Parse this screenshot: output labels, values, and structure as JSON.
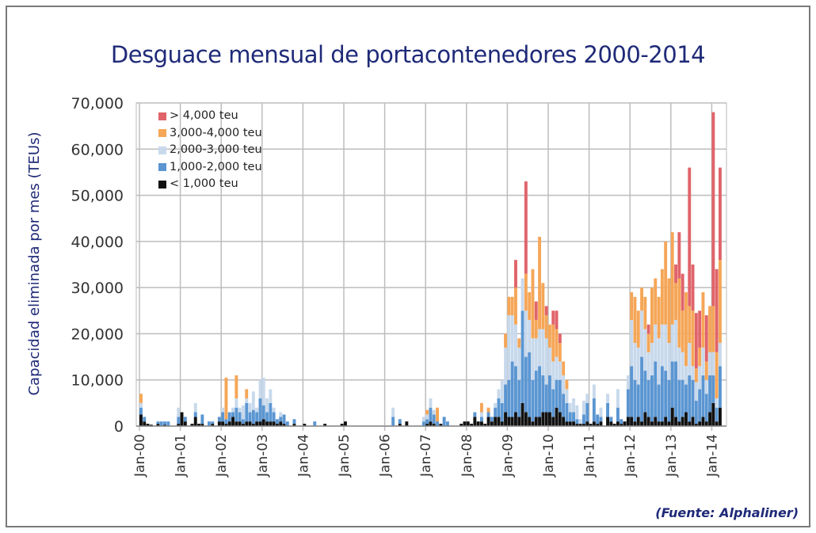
{
  "title": "Desguace mensual de portacontenedores 2000-2014",
  "source": "(Fuente: Alphaliner)",
  "chart_data": {
    "type": "bar",
    "stacked": true,
    "title": "Desguace mensual de portacontenedores 2000-2014",
    "xlabel": "",
    "ylabel": "Capacidad eliminada por mes (TEUs)",
    "ylim": [
      0,
      70000
    ],
    "yticks": [
      "0",
      "10,000",
      "20,000",
      "30,000",
      "40,000",
      "50,000",
      "60,000",
      "70,000"
    ],
    "xticks": [
      "Jan-00",
      "Jan-01",
      "Jan-02",
      "Jan-03",
      "Jan-04",
      "Jan-05",
      "Jan-06",
      "Jan-07",
      "Jan-08",
      "Jan-09",
      "Jan-10",
      "Jan-11",
      "Jan-12",
      "Jan-13",
      "Jan-14"
    ],
    "x_start": "Jan-00",
    "months": 171,
    "value_unit": "thousand TEU",
    "grid": true,
    "legend_position": "top-left",
    "series": [
      {
        "name": "< 1,000 teu",
        "color": "#111111",
        "values": [
          2.5,
          1,
          0.5,
          0.3,
          0,
          0.5,
          0,
          0.3,
          0,
          0,
          0,
          0.5,
          3,
          1,
          0,
          0.5,
          2,
          0.5,
          0.5,
          0,
          0,
          0.5,
          0,
          1,
          1,
          0.5,
          1,
          2,
          1,
          1,
          0.5,
          1,
          1,
          0.5,
          1,
          1,
          1.5,
          1,
          1,
          1,
          0.5,
          1,
          0.5,
          0,
          0,
          0.5,
          0,
          0,
          0.5,
          0,
          0,
          0,
          0,
          0,
          0.5,
          0,
          0,
          0,
          0,
          0.5,
          1,
          0,
          0,
          0,
          0,
          0,
          0,
          0,
          0,
          0,
          0,
          0,
          0,
          0,
          0,
          0,
          0.5,
          0,
          1,
          0,
          0,
          0,
          0,
          0,
          0.5,
          1,
          0.5,
          0,
          0.5,
          0,
          0,
          0,
          0,
          0,
          0.5,
          1,
          1,
          0.5,
          2,
          1,
          1,
          0.5,
          2,
          1,
          2,
          2,
          1,
          3,
          2,
          2,
          3,
          2,
          5,
          3,
          2,
          1,
          2,
          2,
          3,
          3,
          3,
          2,
          4,
          3,
          2,
          1,
          1,
          1,
          0.5,
          0.5,
          0.5,
          1,
          0.5,
          1,
          0.5,
          1,
          0,
          2,
          1,
          0.5,
          1,
          0.5,
          1,
          2,
          2,
          1,
          2,
          1,
          3,
          2,
          1,
          2,
          1,
          1,
          2,
          1,
          4,
          2,
          1,
          2,
          3,
          1,
          2,
          0.5,
          1,
          2,
          1,
          3,
          5,
          1,
          4
        ]
      },
      {
        "name": "1,000-2,000 teu",
        "color": "#5b96d2",
        "values": [
          1.5,
          1,
          0,
          0,
          0,
          0.5,
          1,
          0.7,
          1,
          0,
          0,
          1.5,
          0,
          1,
          0,
          0,
          1,
          0,
          2,
          0,
          1,
          0.5,
          0,
          1,
          2,
          1,
          2,
          1,
          3,
          2,
          1,
          4,
          2,
          3,
          2,
          5,
          3,
          2,
          4,
          2,
          1,
          1,
          2,
          1,
          0,
          1,
          0,
          0,
          0,
          0,
          0,
          1,
          0,
          0,
          0,
          0,
          0,
          0,
          0,
          0,
          0,
          0,
          0,
          0,
          0,
          0,
          0,
          0,
          0,
          0,
          0,
          0,
          0,
          0,
          2,
          0,
          1,
          0,
          0,
          0,
          0,
          0,
          0,
          1,
          1,
          3,
          2,
          1,
          0,
          2,
          1,
          0,
          0,
          0,
          0,
          0,
          0,
          0,
          1,
          0,
          1,
          0,
          1,
          1,
          2,
          4,
          4,
          6,
          8,
          12,
          10,
          8,
          20,
          12,
          14,
          9,
          10,
          11,
          8,
          6,
          8,
          6,
          6,
          7,
          5,
          4,
          2,
          2,
          1,
          0,
          2,
          4,
          0,
          5,
          2,
          1,
          0,
          3,
          1,
          0,
          3,
          1,
          0,
          6,
          11,
          9,
          7,
          14,
          9,
          8,
          10,
          12,
          8,
          12,
          10,
          9,
          10,
          12,
          9,
          8,
          6,
          10,
          8,
          5,
          7,
          9,
          6,
          8,
          6,
          3,
          9
        ]
      },
      {
        "name": "2,000-3,000 teu",
        "color": "#c8d9ec",
        "values": [
          1,
          0,
          0,
          0,
          0,
          0,
          0,
          0,
          0,
          0,
          0,
          2,
          0,
          0,
          0,
          0,
          2,
          0,
          0,
          0,
          0,
          0,
          0,
          0,
          1,
          0,
          0,
          1,
          2,
          1,
          3,
          1,
          2,
          4,
          1,
          4,
          6,
          3,
          3,
          1,
          0,
          1,
          0,
          0,
          0,
          0,
          0,
          0,
          0,
          0,
          0,
          0,
          0,
          0,
          0,
          0,
          0,
          0,
          0,
          0,
          0,
          0,
          0,
          0,
          0,
          0,
          0,
          0,
          0,
          0,
          0,
          0,
          0,
          0,
          2,
          0,
          0,
          0,
          0,
          0,
          0,
          0,
          0,
          1,
          1,
          2,
          1,
          0,
          0,
          0,
          0,
          0,
          0,
          0,
          0,
          0,
          0,
          0,
          0,
          0,
          1,
          0,
          0,
          0,
          1,
          2,
          5,
          8,
          14,
          10,
          9,
          7,
          7,
          10,
          7,
          9,
          7,
          8,
          10,
          10,
          6,
          6,
          5,
          4,
          4,
          3,
          2,
          3,
          3,
          1,
          3,
          2,
          0,
          3,
          0,
          2,
          0,
          2,
          0,
          0,
          4,
          0,
          0,
          3,
          10,
          8,
          8,
          10,
          9,
          6,
          7,
          8,
          10,
          9,
          10,
          8,
          8,
          9,
          7,
          6,
          4,
          7,
          3,
          4,
          5,
          6,
          3,
          5,
          5,
          2,
          5
        ]
      },
      {
        "name": "3,000-4,000 teu",
        "color": "#f5a657",
        "values": [
          2,
          0,
          0,
          0,
          0,
          0,
          0,
          0,
          0,
          0,
          0,
          0,
          0,
          0,
          0,
          0,
          0,
          0,
          0,
          0,
          0,
          0,
          0,
          0,
          0,
          9,
          0,
          0,
          5,
          0,
          0,
          2,
          0,
          0,
          0,
          0,
          0,
          0,
          0,
          0,
          0,
          0,
          0,
          0,
          0,
          0,
          0,
          0,
          0,
          0,
          0,
          0,
          0,
          0,
          0,
          0,
          0,
          0,
          0,
          0,
          0,
          0,
          0,
          0,
          0,
          0,
          0,
          0,
          0,
          0,
          0,
          0,
          0,
          0,
          0,
          0,
          0,
          0,
          0,
          0,
          0,
          0,
          0,
          0,
          1,
          0,
          0,
          3,
          0,
          0,
          0,
          0,
          0,
          0,
          0,
          0,
          0,
          0,
          0,
          0,
          2,
          0,
          1,
          0,
          0,
          0,
          0,
          3,
          4,
          4,
          8,
          2,
          0,
          8,
          6,
          15,
          4,
          20,
          10,
          5,
          5,
          8,
          6,
          4,
          3,
          2,
          0,
          0,
          0,
          0,
          0,
          0,
          0,
          0,
          0,
          0,
          0,
          0,
          0,
          0,
          0,
          0,
          0,
          0,
          6,
          10,
          8,
          5,
          7,
          4,
          12,
          10,
          9,
          12,
          18,
          14,
          20,
          8,
          15,
          9,
          16,
          8,
          12,
          3,
          4,
          12,
          4,
          10,
          10,
          10,
          18
        ]
      },
      {
        "name": "> 4,000 teu",
        "color": "#e0646a",
        "values": [
          0,
          0,
          0,
          0,
          0,
          0,
          0,
          0,
          0,
          0,
          0,
          0,
          0,
          0,
          0,
          0,
          0,
          0,
          0,
          0,
          0,
          0,
          0,
          0,
          0,
          0,
          0,
          0,
          0,
          0,
          0,
          0,
          0,
          0,
          0,
          0,
          0,
          0,
          0,
          0,
          0,
          0,
          0,
          0,
          0,
          0,
          0,
          0,
          0,
          0,
          0,
          0,
          0,
          0,
          0,
          0,
          0,
          0,
          0,
          0,
          0,
          0,
          0,
          0,
          0,
          0,
          0,
          0,
          0,
          0,
          0,
          0,
          0,
          0,
          0,
          0,
          0,
          0,
          0,
          0,
          0,
          0,
          0,
          0,
          0,
          0,
          0,
          0,
          0,
          0,
          0,
          0,
          0,
          0,
          0,
          0,
          0,
          0,
          0,
          0,
          0,
          0,
          0,
          0,
          0,
          0,
          0,
          0,
          0,
          0,
          6,
          0,
          0,
          20,
          0,
          0,
          4,
          0,
          0,
          2,
          0,
          3,
          4,
          2,
          0,
          0,
          0,
          0,
          0,
          0,
          0,
          0,
          0,
          0,
          0,
          0,
          0,
          0,
          0,
          0,
          0,
          0,
          0,
          0,
          0,
          0,
          0,
          0,
          0,
          2,
          0,
          0,
          0,
          0,
          0,
          0,
          0,
          4,
          10,
          8,
          0,
          30,
          10,
          12,
          8,
          0,
          10,
          0,
          42,
          18,
          20
        ]
      }
    ]
  }
}
